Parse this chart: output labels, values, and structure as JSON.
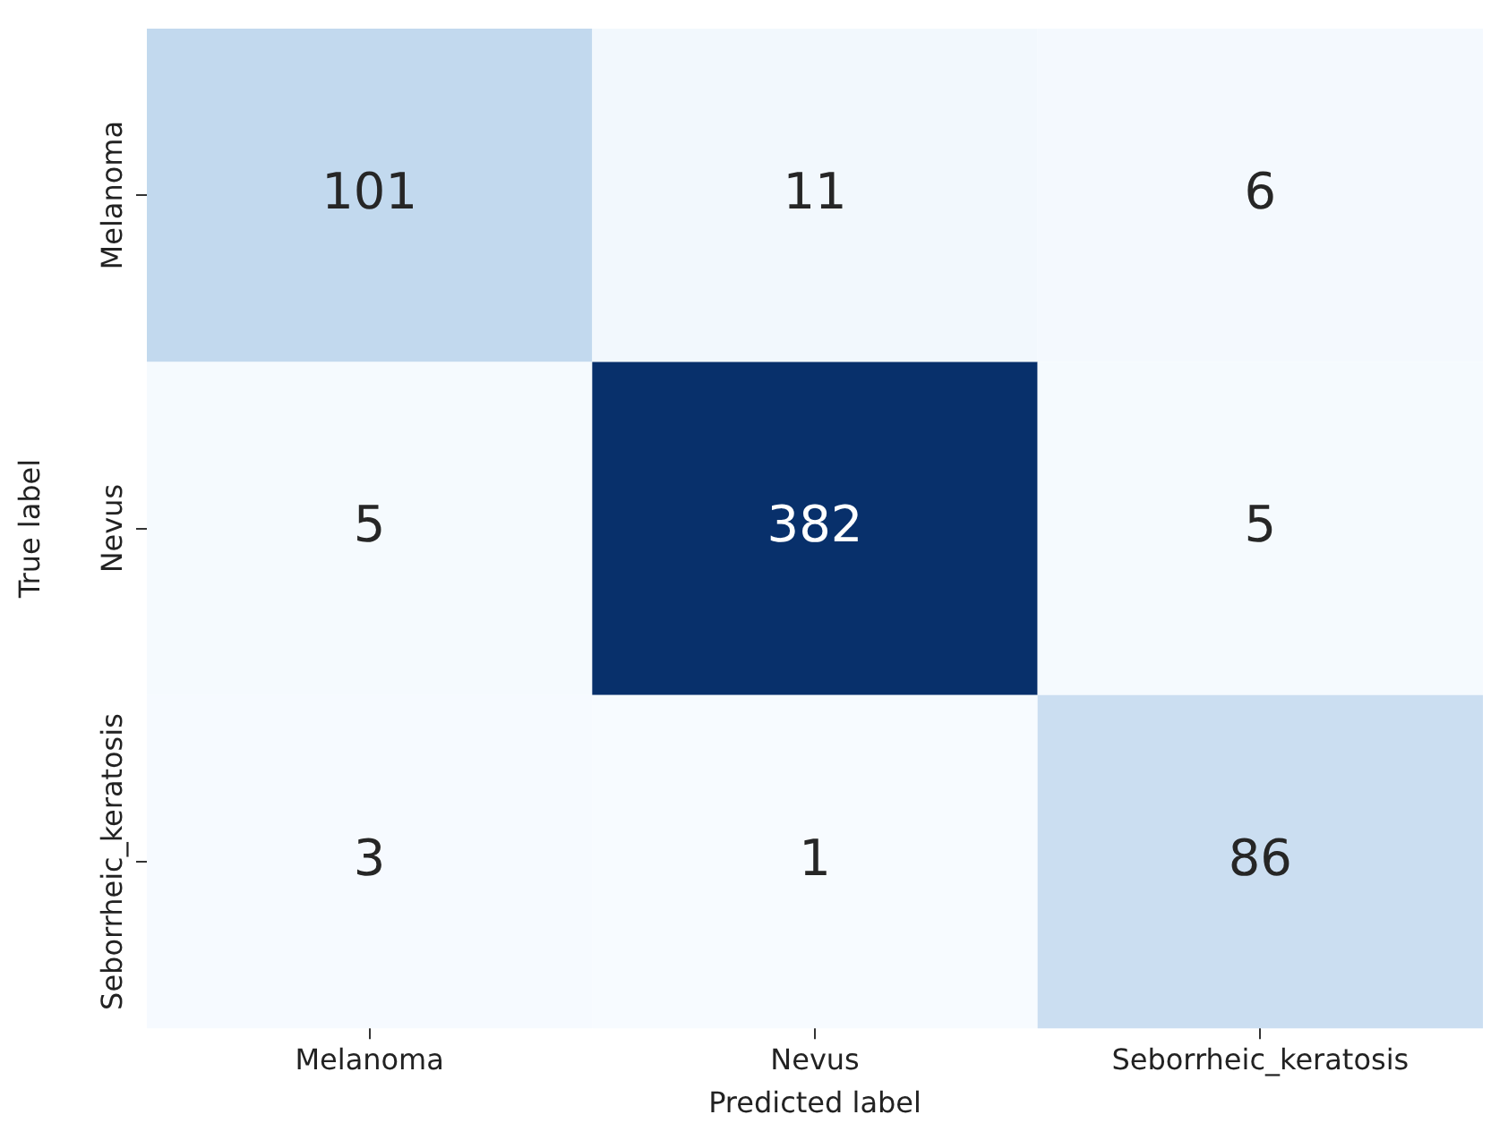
{
  "chart_data": {
    "type": "heatmap",
    "xlabel": "Predicted label",
    "ylabel": "True label",
    "categories": [
      "Melanoma",
      "Nevus",
      "Seborrheic_keratosis"
    ],
    "y_categories": [
      "Melanoma",
      "Nevus",
      "Seborrheic_keratosis"
    ],
    "cells": [
      [
        101,
        11,
        6
      ],
      [
        5,
        382,
        5
      ],
      [
        3,
        1,
        86
      ]
    ],
    "data_labels": true
  }
}
